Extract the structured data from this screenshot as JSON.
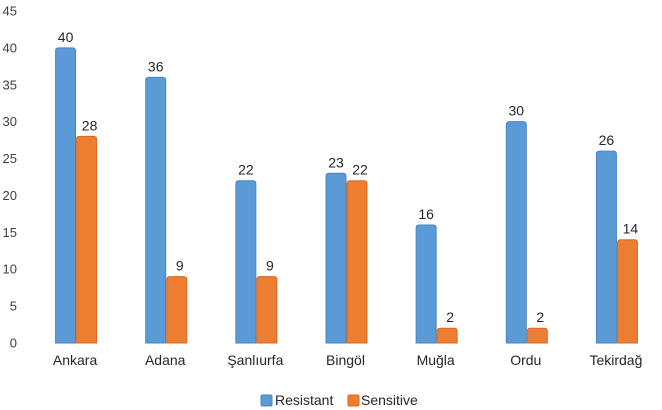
{
  "chart_data": {
    "type": "bar",
    "categories": [
      "Ankara",
      "Adana",
      "Şanlıurfa",
      "Bingöl",
      "Muğla",
      "Ordu",
      "Tekirdağ"
    ],
    "series": [
      {
        "name": "Resistant",
        "color": "#5b9bd5",
        "edge": "#4a86c0",
        "values": [
          40,
          36,
          22,
          23,
          16,
          30,
          26
        ]
      },
      {
        "name": "Sensitive",
        "color": "#ed7d31",
        "edge": "#d86a20",
        "values": [
          28,
          9,
          9,
          22,
          2,
          2,
          14
        ]
      }
    ],
    "ylim": [
      0,
      45
    ],
    "yticks": [
      0,
      5,
      10,
      15,
      20,
      25,
      30,
      35,
      40,
      45
    ],
    "legend_position": "bottom-center",
    "grid": false
  }
}
